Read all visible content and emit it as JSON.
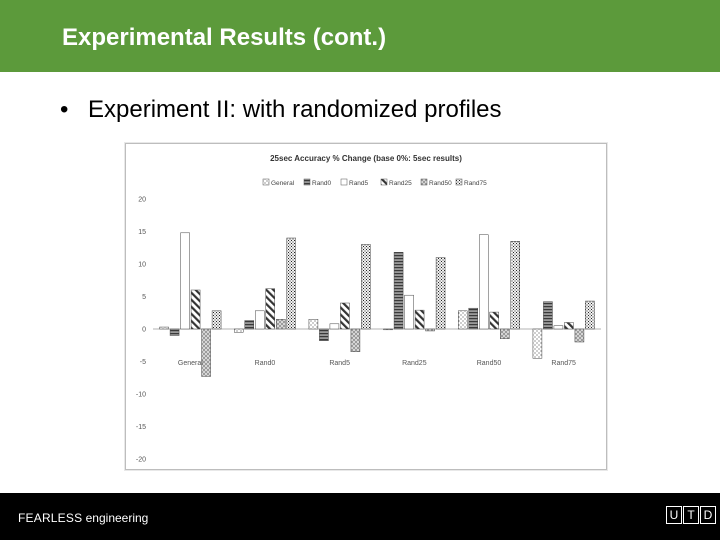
{
  "slide": {
    "title": "Experimental Results (cont.)",
    "bullet": "Experiment II: with randomized profiles",
    "bullet_symbol": "•"
  },
  "footer": {
    "brand_bold": "FEARLESS",
    "brand_rest": " engineering",
    "logo_letters": [
      "U",
      "T",
      "D"
    ]
  },
  "colors": {
    "header": "#5c9a3b",
    "footer": "#000000"
  },
  "chart_data": {
    "type": "bar",
    "title": "25sec Accuracy % Change (base 0%: 5sec results)",
    "xlabel": "",
    "ylabel": "",
    "ylim": [
      -20,
      20
    ],
    "yticks": [
      20,
      15,
      10,
      5,
      0,
      -5,
      -10,
      -15,
      -20
    ],
    "grid": false,
    "legend_position": "top",
    "categories": [
      "General",
      "Rand0",
      "Rand5",
      "Rand25",
      "Rand50",
      "Rand75"
    ],
    "series": [
      {
        "name": "General",
        "pattern": "dots",
        "values": [
          0.3,
          -0.5,
          1.5,
          0.0,
          2.8,
          -4.5
        ]
      },
      {
        "name": "Rand0",
        "pattern": "hstripes",
        "values": [
          -1.0,
          1.3,
          -1.8,
          11.8,
          3.2,
          4.2
        ]
      },
      {
        "name": "Rand5",
        "pattern": "blank",
        "values": [
          14.8,
          2.8,
          0.8,
          5.2,
          14.5,
          0.5
        ]
      },
      {
        "name": "Rand25",
        "pattern": "diag",
        "values": [
          6.0,
          6.2,
          4.0,
          2.9,
          2.6,
          1.0
        ]
      },
      {
        "name": "Rand50",
        "pattern": "hatch",
        "values": [
          -7.3,
          1.5,
          -3.5,
          -0.3,
          -1.5,
          -2.0
        ]
      },
      {
        "name": "Rand75",
        "pattern": "dense",
        "values": [
          2.8,
          14.0,
          13.0,
          11.0,
          13.5,
          4.3
        ]
      }
    ]
  }
}
